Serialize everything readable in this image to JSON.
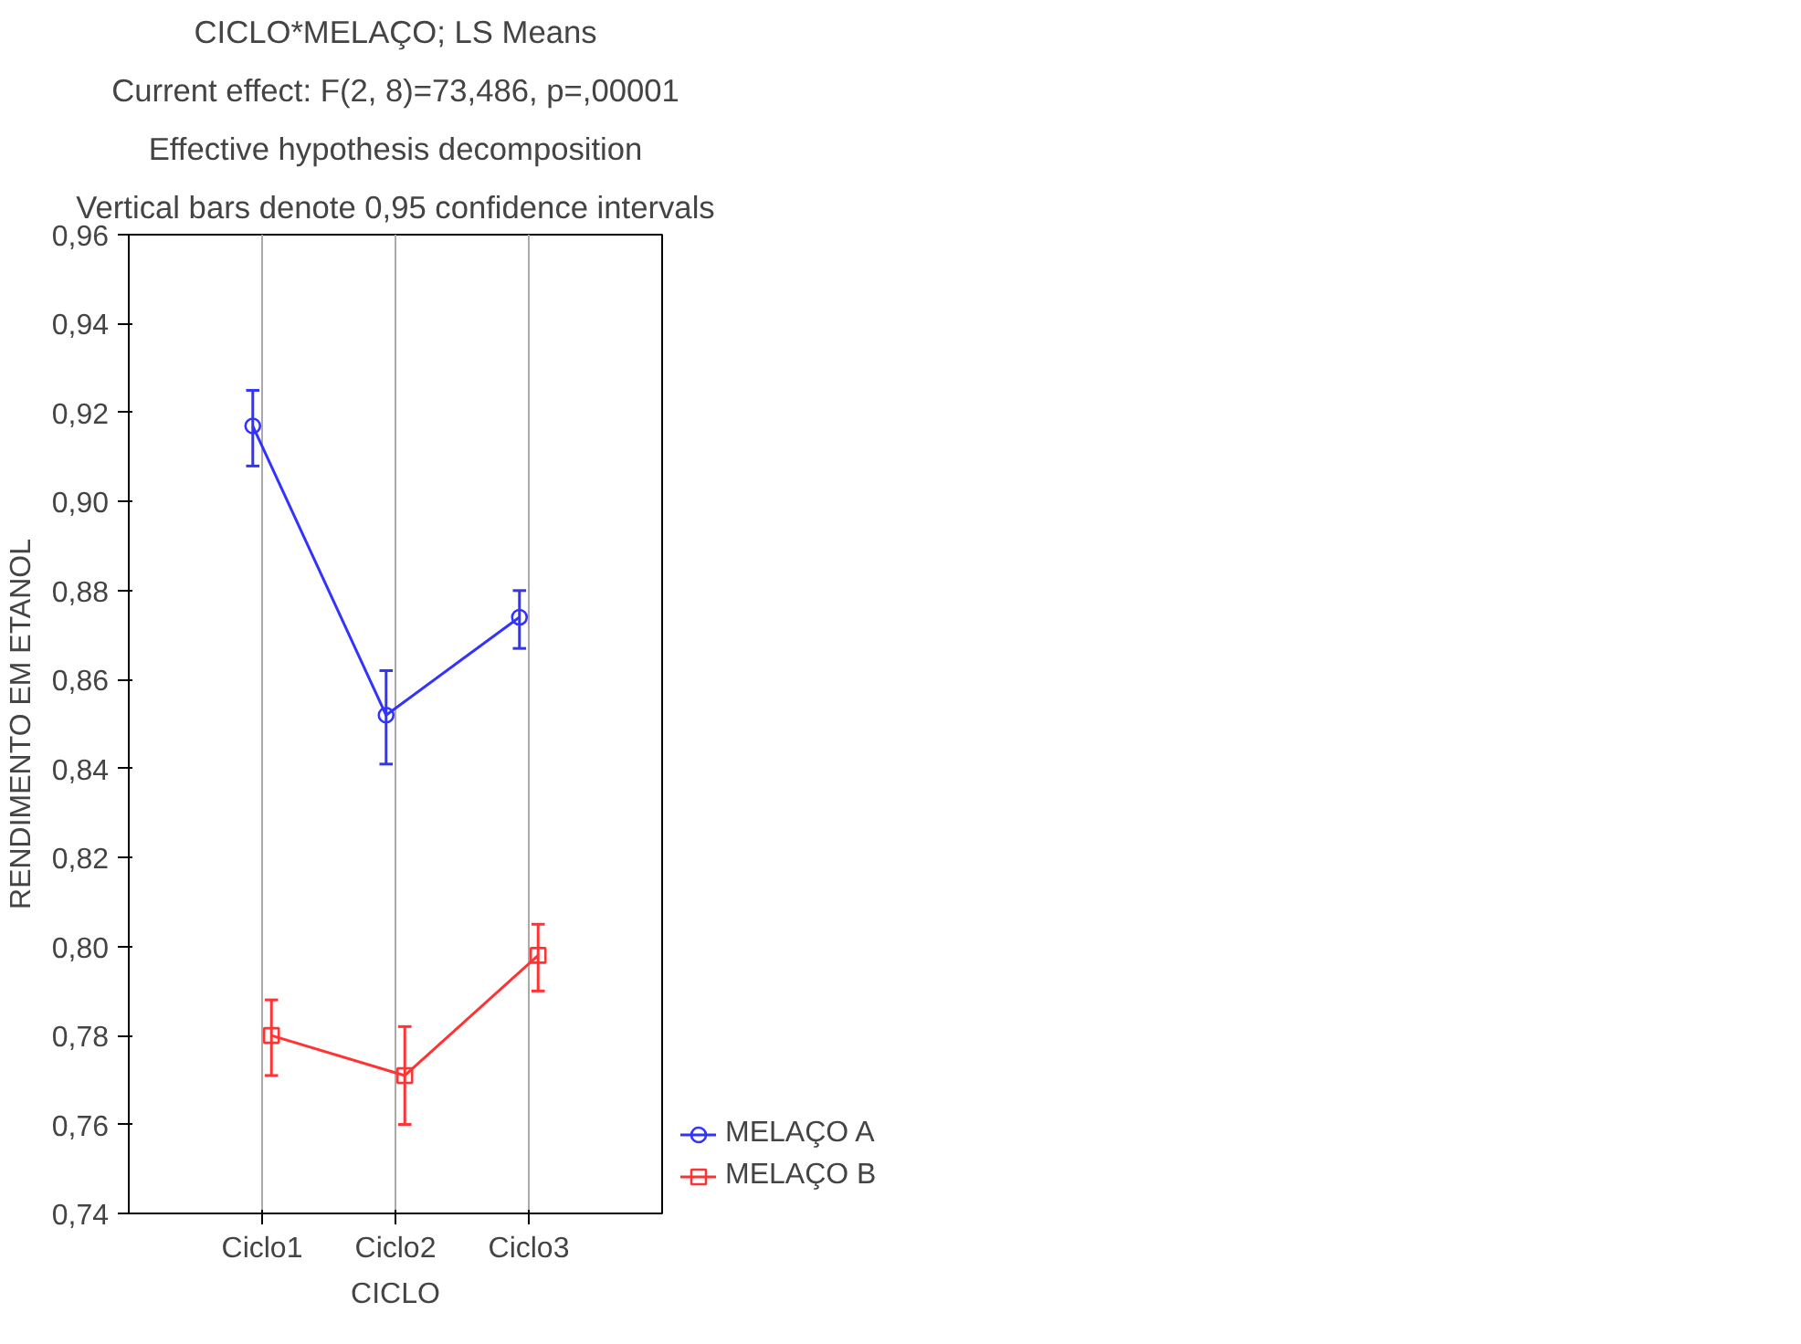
{
  "chart_data": {
    "type": "line",
    "title": "CICLO*MELAÇO; LS Means",
    "subtitle": "Current effect: F(2, 8)=73,486, p=,00001",
    "annotations": [
      "Effective hypothesis decomposition",
      "Vertical bars denote 0,95 confidence intervals"
    ],
    "xlabel": "CICLO",
    "ylabel": "RENDIMENTO EM ETANOL",
    "categories": [
      "Ciclo1",
      "Ciclo2",
      "Ciclo3"
    ],
    "ylim": [
      0.74,
      0.96
    ],
    "yticks": [
      {
        "value": 0.74,
        "label": "0,74"
      },
      {
        "value": 0.76,
        "label": "0,76"
      },
      {
        "value": 0.78,
        "label": "0,78"
      },
      {
        "value": 0.8,
        "label": "0,80"
      },
      {
        "value": 0.82,
        "label": "0,82"
      },
      {
        "value": 0.84,
        "label": "0,84"
      },
      {
        "value": 0.86,
        "label": "0,86"
      },
      {
        "value": 0.88,
        "label": "0,88"
      },
      {
        "value": 0.9,
        "label": "0,90"
      },
      {
        "value": 0.92,
        "label": "0,92"
      },
      {
        "value": 0.94,
        "label": "0,94"
      },
      {
        "value": 0.96,
        "label": "0,96"
      }
    ],
    "grid": "x",
    "legend": "right",
    "series": [
      {
        "name": "MELAÇO A",
        "color": "#3333ff",
        "marker": "circle",
        "values": [
          0.917,
          0.852,
          0.874
        ],
        "errors": [
          [
            0.908,
            0.925
          ],
          [
            0.841,
            0.862
          ],
          [
            0.867,
            0.88
          ]
        ]
      },
      {
        "name": "MELAÇO B",
        "color": "#ff3333",
        "marker": "square",
        "values": [
          0.78,
          0.771,
          0.798
        ],
        "errors": [
          [
            0.771,
            0.788
          ],
          [
            0.76,
            0.782
          ],
          [
            0.79,
            0.805
          ]
        ]
      }
    ]
  }
}
